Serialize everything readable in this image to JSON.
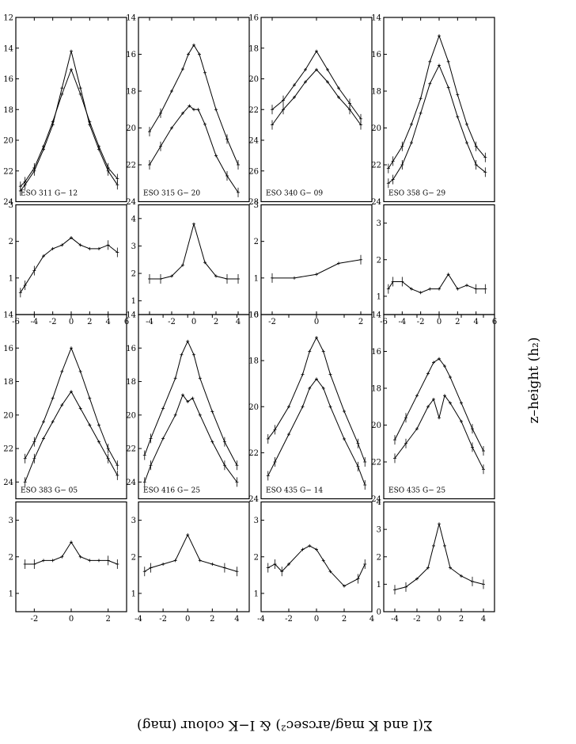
{
  "xlabel": "z–height (h₂)",
  "ylabel": "Σ(I and K mag/arcsec²) & I−K colour (mag)",
  "chart_data": [
    {
      "type": "line",
      "galaxy": "ESO 311 G− 12",
      "xlim": [
        -6,
        6
      ],
      "xticks": [
        -6,
        -4,
        -2,
        0,
        2,
        4,
        6
      ],
      "mag_ylim": [
        12,
        24
      ],
      "mag_yticks": [
        12,
        14,
        16,
        18,
        20,
        22,
        24
      ],
      "col_ylim": [
        0,
        3
      ],
      "col_yticks": [
        1,
        2,
        3
      ],
      "series": [
        {
          "name": "I",
          "x": [
            -5.5,
            -5,
            -4,
            -3,
            -2,
            -1,
            0,
            1,
            2,
            3,
            4,
            5
          ],
          "y": [
            23,
            22.7,
            21.8,
            20.4,
            18.8,
            17,
            15.4,
            17,
            18.8,
            20.4,
            21.8,
            22.5
          ]
        },
        {
          "name": "K",
          "x": [
            -5.5,
            -5,
            -4,
            -3,
            -2,
            -1,
            0,
            1,
            2,
            3,
            4,
            5
          ],
          "y": [
            23.3,
            22.9,
            22,
            20.6,
            19,
            16.6,
            14.2,
            16.6,
            19,
            20.6,
            22,
            22.9
          ]
        },
        {
          "name": "I−K",
          "x": [
            -5.5,
            -5,
            -4,
            -3,
            -2,
            -1,
            0,
            1,
            2,
            3,
            4,
            5
          ],
          "y": [
            0.6,
            0.8,
            1.2,
            1.6,
            1.8,
            1.9,
            2.1,
            1.9,
            1.8,
            1.8,
            1.9,
            1.7
          ]
        }
      ]
    },
    {
      "type": "line",
      "galaxy": "ESO 315 G− 20",
      "xlim": [
        -5,
        5
      ],
      "xticks": [
        -4,
        -2,
        0,
        2,
        4
      ],
      "mag_ylim": [
        14,
        24
      ],
      "mag_yticks": [
        14,
        16,
        18,
        20,
        22,
        24
      ],
      "col_ylim": [
        0.5,
        4.5
      ],
      "col_yticks": [
        1,
        2,
        3,
        4
      ],
      "series": [
        {
          "name": "I",
          "x": [
            -4,
            -3,
            -2,
            -1,
            -0.4,
            0,
            0.4,
            1,
            2,
            3,
            4
          ],
          "y": [
            22,
            21,
            20,
            19.2,
            18.8,
            19,
            19,
            19.8,
            21.5,
            22.6,
            23.5
          ]
        },
        {
          "name": "K",
          "x": [
            -4,
            -3,
            -2,
            -1,
            -0.5,
            0,
            0.5,
            1,
            2,
            3,
            4
          ],
          "y": [
            20.2,
            19.2,
            18,
            16.8,
            16,
            15.5,
            16,
            17,
            19,
            20.6,
            22
          ]
        },
        {
          "name": "I−K",
          "x": [
            -4,
            -3,
            -2,
            -1,
            0,
            1,
            2,
            3,
            4
          ],
          "y": [
            1.8,
            1.8,
            1.9,
            2.3,
            3.8,
            2.4,
            1.9,
            1.8,
            1.8
          ]
        }
      ]
    },
    {
      "type": "line",
      "galaxy": "ESO 340 G− 09",
      "xlim": [
        -2.5,
        2.5
      ],
      "xticks": [
        -2,
        0,
        2
      ],
      "mag_ylim": [
        16,
        28
      ],
      "mag_yticks": [
        16,
        18,
        20,
        22,
        24,
        26,
        28
      ],
      "col_ylim": [
        0,
        3
      ],
      "col_yticks": [
        0,
        1,
        2,
        3
      ],
      "series": [
        {
          "name": "I",
          "x": [
            -2,
            -1.5,
            -1,
            -0.5,
            0,
            0.5,
            1,
            1.5,
            2
          ],
          "y": [
            23,
            22,
            21.2,
            20.2,
            19.4,
            20.2,
            21.2,
            22,
            23
          ]
        },
        {
          "name": "K",
          "x": [
            -2,
            -1.5,
            -1,
            -0.5,
            0,
            0.5,
            1,
            1.5,
            2
          ],
          "y": [
            22,
            21.4,
            20.4,
            19.4,
            18.2,
            19.4,
            20.6,
            21.6,
            22.6
          ]
        },
        {
          "name": "I−K",
          "x": [
            -2,
            -1,
            0,
            1,
            2
          ],
          "y": [
            1,
            1,
            1.1,
            1.4,
            1.5
          ]
        }
      ]
    },
    {
      "type": "line",
      "galaxy": "ESO 358 G− 29",
      "xlim": [
        -6,
        6
      ],
      "xticks": [
        -6,
        -4,
        -2,
        0,
        2,
        4,
        6
      ],
      "mag_ylim": [
        14,
        24
      ],
      "mag_yticks": [
        14,
        16,
        18,
        20,
        22,
        24
      ],
      "col_ylim": [
        0.5,
        3.5
      ],
      "col_yticks": [
        1,
        2,
        3
      ],
      "series": [
        {
          "name": "I",
          "x": [
            -5.5,
            -5,
            -4,
            -3,
            -2,
            -1,
            0,
            1,
            2,
            3,
            4,
            5
          ],
          "y": [
            23,
            22.8,
            22,
            20.8,
            19.2,
            17.6,
            16.6,
            17.8,
            19.4,
            20.8,
            22,
            22.4
          ]
        },
        {
          "name": "K",
          "x": [
            -5.5,
            -5,
            -4,
            -3,
            -2,
            -1,
            0,
            1,
            2,
            3,
            4,
            5
          ],
          "y": [
            22.2,
            21.8,
            21,
            19.8,
            18.4,
            16.4,
            15,
            16.4,
            18.2,
            19.8,
            21,
            21.6
          ]
        },
        {
          "name": "I−K",
          "x": [
            -5.5,
            -5,
            -4,
            -3,
            -2,
            -1,
            0,
            1,
            2,
            3,
            4,
            5
          ],
          "y": [
            1.2,
            1.4,
            1.4,
            1.2,
            1.1,
            1.2,
            1.2,
            1.6,
            1.2,
            1.3,
            1.2,
            1.2
          ]
        }
      ]
    },
    {
      "type": "line",
      "galaxy": "ESO 383 G− 05",
      "xlim": [
        -3,
        3
      ],
      "xticks": [
        -2,
        0,
        2
      ],
      "mag_ylim": [
        14,
        25
      ],
      "mag_yticks": [
        14,
        16,
        18,
        20,
        22,
        24
      ],
      "col_ylim": [
        0.5,
        3.5
      ],
      "col_yticks": [
        1,
        2,
        3
      ],
      "series": [
        {
          "name": "I",
          "x": [
            -2.5,
            -2,
            -1.5,
            -1,
            -0.5,
            0,
            0.5,
            1,
            1.5,
            2,
            2.5
          ],
          "y": [
            24,
            22.6,
            21.4,
            20.4,
            19.4,
            18.6,
            19.6,
            20.6,
            21.6,
            22.6,
            23.6
          ]
        },
        {
          "name": "K",
          "x": [
            -2.5,
            -2,
            -1.5,
            -1,
            -0.5,
            0,
            0.5,
            1,
            1.5,
            2,
            2.5
          ],
          "y": [
            22.6,
            21.6,
            20.4,
            19,
            17.4,
            16,
            17.4,
            19,
            20.6,
            22,
            23
          ]
        },
        {
          "name": "I−K",
          "x": [
            -2.5,
            -2,
            -1.5,
            -1,
            -0.5,
            0,
            0.5,
            1,
            1.5,
            2,
            2.5
          ],
          "y": [
            1.8,
            1.8,
            1.9,
            1.9,
            2,
            2.4,
            2,
            1.9,
            1.9,
            1.9,
            1.8
          ]
        }
      ]
    },
    {
      "type": "line",
      "galaxy": "ESO 416 G− 25",
      "xlim": [
        -4,
        5
      ],
      "xticks": [
        -4,
        -2,
        0,
        2,
        4
      ],
      "mag_ylim": [
        14,
        25
      ],
      "mag_yticks": [
        14,
        16,
        18,
        20,
        22,
        24
      ],
      "col_ylim": [
        0.5,
        3.5
      ],
      "col_yticks": [
        1,
        2,
        3
      ],
      "series": [
        {
          "name": "I",
          "x": [
            -3.5,
            -3,
            -2,
            -1,
            -0.4,
            0,
            0.4,
            1,
            2,
            3,
            4
          ],
          "y": [
            24,
            23,
            21.4,
            20,
            18.8,
            19.2,
            19,
            20,
            21.6,
            23,
            24
          ]
        },
        {
          "name": "K",
          "x": [
            -3.5,
            -3,
            -2,
            -1,
            -0.5,
            0,
            0.5,
            1,
            2,
            3,
            4
          ],
          "y": [
            22.4,
            21.4,
            19.6,
            17.8,
            16.4,
            15.6,
            16.4,
            17.8,
            19.8,
            21.6,
            23
          ]
        },
        {
          "name": "I−K",
          "x": [
            -3.5,
            -3,
            -2,
            -1,
            0,
            1,
            2,
            3,
            4
          ],
          "y": [
            1.6,
            1.7,
            1.8,
            1.9,
            2.6,
            1.9,
            1.8,
            1.7,
            1.6
          ]
        }
      ]
    },
    {
      "type": "line",
      "galaxy": "ESO 435 G− 14",
      "xlim": [
        -4,
        4
      ],
      "xticks": [
        -4,
        -2,
        0,
        2,
        4
      ],
      "mag_ylim": [
        16,
        24
      ],
      "mag_yticks": [
        16,
        18,
        20,
        22,
        24
      ],
      "col_ylim": [
        0.5,
        3.5
      ],
      "col_yticks": [
        1,
        2,
        3
      ],
      "series": [
        {
          "name": "I",
          "x": [
            -3.5,
            -3,
            -2,
            -1,
            -0.5,
            0,
            0.5,
            1,
            2,
            3,
            3.5
          ],
          "y": [
            23,
            22.4,
            21.2,
            20,
            19.2,
            18.8,
            19.2,
            20,
            21.4,
            22.6,
            23.4
          ]
        },
        {
          "name": "K",
          "x": [
            -3.5,
            -3,
            -2,
            -1,
            -0.5,
            0,
            0.5,
            1,
            2,
            3,
            3.5
          ],
          "y": [
            21.4,
            21,
            20,
            18.6,
            17.6,
            17,
            17.6,
            18.6,
            20.2,
            21.6,
            22.4
          ]
        },
        {
          "name": "I−K",
          "x": [
            -3.5,
            -3,
            -2.5,
            -2,
            -1,
            -0.5,
            0,
            0.5,
            1,
            2,
            3,
            3.5
          ],
          "y": [
            1.7,
            1.8,
            1.6,
            1.8,
            2.2,
            2.3,
            2.2,
            1.9,
            1.6,
            1.2,
            1.4,
            1.8
          ]
        }
      ]
    },
    {
      "type": "line",
      "galaxy": "ESO 435 G− 25",
      "xlim": [
        -5,
        5
      ],
      "xticks": [
        -4,
        -2,
        0,
        2,
        4
      ],
      "mag_ylim": [
        14,
        24
      ],
      "mag_yticks": [
        14,
        16,
        18,
        20,
        22,
        24
      ],
      "col_ylim": [
        0,
        4
      ],
      "col_yticks": [
        0,
        1,
        2,
        3,
        4
      ],
      "series": [
        {
          "name": "I",
          "x": [
            -4,
            -3,
            -2,
            -1,
            -0.5,
            0,
            0.5,
            1,
            2,
            3,
            4
          ],
          "y": [
            21.8,
            21,
            20.2,
            19,
            18.6,
            19.6,
            18.4,
            18.8,
            19.8,
            21.2,
            22.4
          ]
        },
        {
          "name": "K",
          "x": [
            -4,
            -3,
            -2,
            -1,
            -0.5,
            0,
            0.5,
            1,
            2,
            3,
            4
          ],
          "y": [
            20.8,
            19.6,
            18.4,
            17.2,
            16.6,
            16.4,
            16.8,
            17.4,
            18.8,
            20.2,
            21.4
          ]
        },
        {
          "name": "I−K",
          "x": [
            -4,
            -3,
            -2,
            -1,
            -0.5,
            0,
            0.5,
            1,
            2,
            3,
            4
          ],
          "y": [
            0.8,
            0.9,
            1.2,
            1.6,
            2.4,
            3.2,
            2.4,
            1.6,
            1.3,
            1.1,
            1
          ]
        }
      ]
    }
  ]
}
